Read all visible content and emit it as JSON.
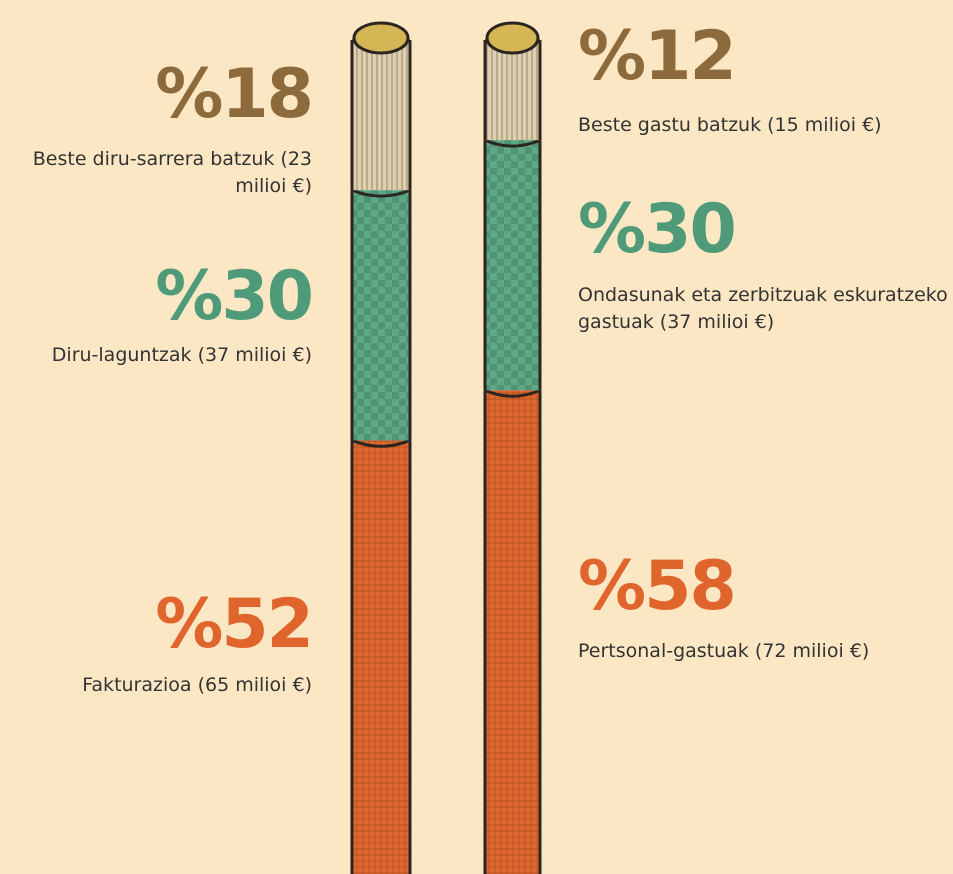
{
  "chart_data": [
    {
      "type": "stacked-column",
      "values": [
        52,
        30,
        18
      ],
      "value_labels": [
        "%52",
        "%30",
        "%18"
      ],
      "labels": [
        "Fakturazioa (65 milioi €)",
        "Diru-laguntzak (37 milioi €)",
        "Beste diru-sarrera batzuk (23 milioi €)"
      ],
      "colors": [
        "#e0672f",
        "#5fa886",
        "#ddd0b0"
      ],
      "label_colors": [
        "#e0652c",
        "#4f9a78",
        "#8d6a3c"
      ]
    },
    {
      "type": "stacked-column",
      "values": [
        58,
        30,
        12
      ],
      "value_labels": [
        "%58",
        "%30",
        "%12"
      ],
      "labels": [
        "Pertsonal-gastuak (72 milioi €)",
        "Ondasunak eta zerbitzuak eskuratzeko gastuak (37 milioi €)",
        "Beste gastu batzuk (15 milioi €)"
      ],
      "colors": [
        "#e0672f",
        "#5fa886",
        "#ddd0b0"
      ],
      "label_colors": [
        "#e0652c",
        "#4f9a78",
        "#8d6a3c"
      ]
    }
  ]
}
